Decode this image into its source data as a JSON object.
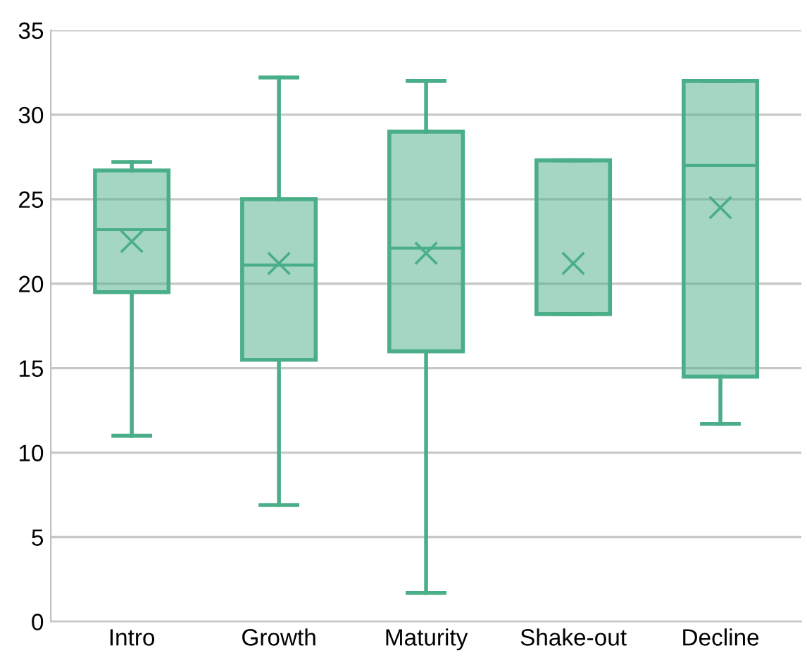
{
  "chart_data": {
    "type": "box",
    "categories": [
      "Intro",
      "Growth",
      "Maturity",
      "Shake-out",
      "Decline"
    ],
    "boxes": [
      {
        "low": 11,
        "q1": 19.5,
        "median": 23.2,
        "q3": 26.7,
        "high": 27.2,
        "mean": 22.5
      },
      {
        "low": 6.9,
        "q1": 15.5,
        "median": 21.1,
        "q3": 25,
        "high": 32.2,
        "mean": 21.2
      },
      {
        "low": 1.7,
        "q1": 16,
        "median": 22.1,
        "q3": 29,
        "high": 32,
        "mean": 21.8
      },
      {
        "low": 18.2,
        "q1": 18.2,
        "median": 18.2,
        "q3": 27.3,
        "high": 27.3,
        "mean": 21.2
      },
      {
        "low": 11.7,
        "q1": 14.5,
        "median": 27,
        "q3": 32,
        "high": 32,
        "mean": 24.5
      }
    ],
    "color": "#4aae88",
    "ylim": [
      0,
      35
    ],
    "yticks": [
      0,
      5,
      10,
      15,
      20,
      25,
      30,
      35
    ],
    "grid": "y",
    "marker": "cross"
  }
}
